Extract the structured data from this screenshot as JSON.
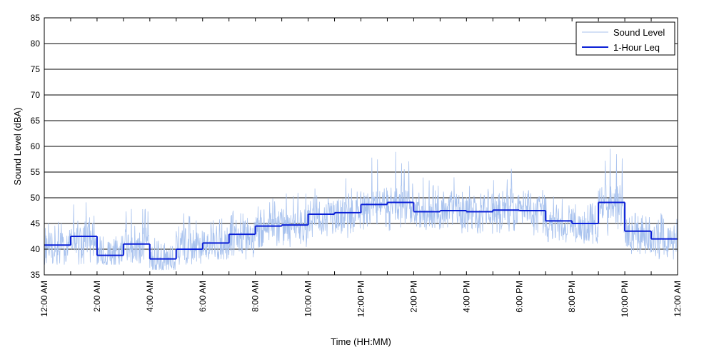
{
  "chart_data": {
    "type": "line",
    "title": "",
    "xlabel": "Time (HH:MM)",
    "ylabel": "Sound Level (dBA)",
    "xlim": [
      0,
      24
    ],
    "ylim": [
      35,
      85
    ],
    "yticks": [
      35,
      40,
      45,
      50,
      55,
      60,
      65,
      70,
      75,
      80,
      85
    ],
    "xticks": [
      {
        "hour": 0,
        "label": "12:00 AM"
      },
      {
        "hour": 2,
        "label": "2:00 AM"
      },
      {
        "hour": 4,
        "label": "4:00 AM"
      },
      {
        "hour": 6,
        "label": "6:00 AM"
      },
      {
        "hour": 8,
        "label": "8:00 AM"
      },
      {
        "hour": 10,
        "label": "10:00 AM"
      },
      {
        "hour": 12,
        "label": "12:00 PM"
      },
      {
        "hour": 14,
        "label": "2:00 PM"
      },
      {
        "hour": 16,
        "label": "4:00 PM"
      },
      {
        "hour": 18,
        "label": "6:00 PM"
      },
      {
        "hour": 20,
        "label": "8:00 PM"
      },
      {
        "hour": 22,
        "label": "10:00 PM"
      },
      {
        "hour": 24,
        "label": "12:00 AM"
      }
    ],
    "grid": "horizontal",
    "legend_position": "top-right",
    "series": [
      {
        "name": "Sound Level",
        "style": "thin-line",
        "color": "#a8c2ee",
        "hourly_range": [
          {
            "hour": 0,
            "min": 37,
            "max": 47
          },
          {
            "hour": 1,
            "min": 37,
            "max": 50
          },
          {
            "hour": 2,
            "min": 37,
            "max": 43
          },
          {
            "hour": 3,
            "min": 37,
            "max": 49
          },
          {
            "hour": 4,
            "min": 36,
            "max": 43
          },
          {
            "hour": 5,
            "min": 37,
            "max": 47
          },
          {
            "hour": 6,
            "min": 38,
            "max": 46
          },
          {
            "hour": 7,
            "min": 38,
            "max": 48
          },
          {
            "hour": 8,
            "min": 40,
            "max": 50
          },
          {
            "hour": 9,
            "min": 40,
            "max": 51
          },
          {
            "hour": 10,
            "min": 42,
            "max": 52
          },
          {
            "hour": 11,
            "min": 42,
            "max": 54
          },
          {
            "hour": 12,
            "min": 43,
            "max": 58
          },
          {
            "hour": 13,
            "min": 43,
            "max": 59
          },
          {
            "hour": 14,
            "min": 43,
            "max": 54
          },
          {
            "hour": 15,
            "min": 43,
            "max": 54
          },
          {
            "hour": 16,
            "min": 43,
            "max": 53
          },
          {
            "hour": 17,
            "min": 43,
            "max": 56
          },
          {
            "hour": 18,
            "min": 42,
            "max": 52
          },
          {
            "hour": 19,
            "min": 41,
            "max": 51
          },
          {
            "hour": 20,
            "min": 41,
            "max": 50
          },
          {
            "hour": 21,
            "min": 41,
            "max": 61
          },
          {
            "hour": 22,
            "min": 39,
            "max": 49
          },
          {
            "hour": 23,
            "min": 38,
            "max": 48
          }
        ]
      },
      {
        "name": "1-Hour Leq",
        "style": "step",
        "color": "#0a1fd6",
        "hours": [
          0,
          1,
          2,
          3,
          4,
          5,
          6,
          7,
          8,
          9,
          10,
          11,
          12,
          13,
          14,
          15,
          16,
          17,
          18,
          19,
          20,
          21,
          22,
          23
        ],
        "values": [
          40.8,
          42.5,
          38.8,
          41.0,
          38.1,
          40.0,
          41.2,
          42.9,
          44.5,
          44.7,
          46.8,
          47.1,
          48.7,
          49.1,
          47.3,
          47.5,
          47.3,
          47.6,
          47.5,
          45.5,
          45.0,
          49.1,
          43.5,
          42.0
        ]
      }
    ]
  }
}
